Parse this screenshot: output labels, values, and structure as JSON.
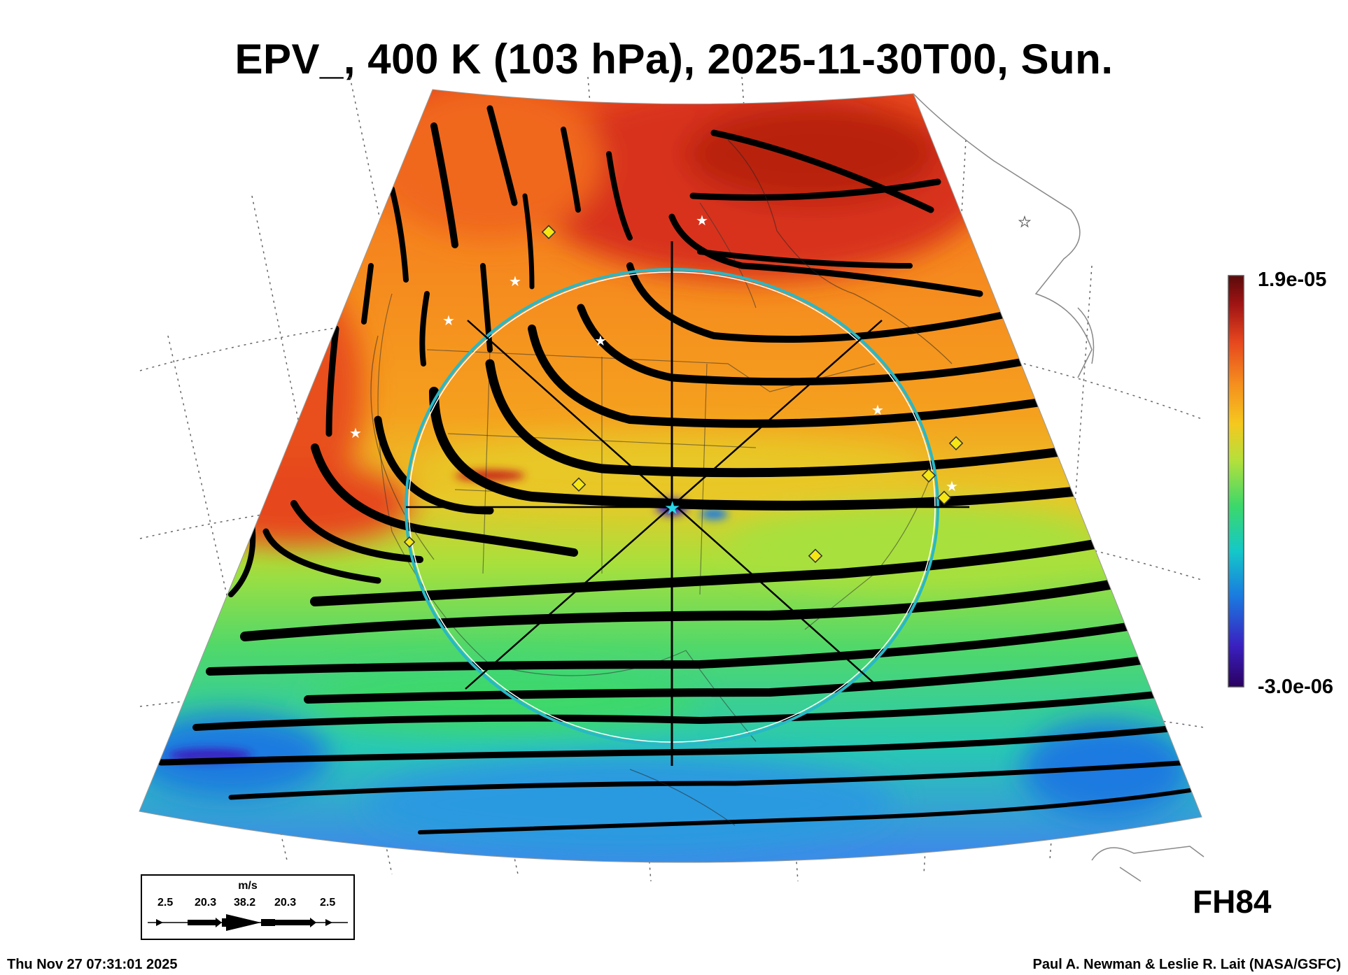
{
  "title": "EPV_, 400 K (103 hPa), 2025-11-30T00, Sun.",
  "colorbar": {
    "max_label": "1.9e-05",
    "min_label": "-3.0e-06",
    "colors": [
      "#2a0060",
      "#3a20c0",
      "#1a7ae0",
      "#14c8c8",
      "#3cd86a",
      "#b4e03c",
      "#f5c81e",
      "#f58c1e",
      "#e6461e",
      "#a01414",
      "#5a0a0a"
    ]
  },
  "wind_legend": {
    "unit": "m/s",
    "values": [
      "2.5",
      "20.3",
      "38.2",
      "20.3",
      "2.5"
    ]
  },
  "forecast_hour": "FH84",
  "footer": {
    "timestamp": "Thu Nov 27 07:31:01 2025",
    "credit": "Paul A. Newman & Leslie R. Lait (NASA/GSFC)"
  },
  "overlay_colors": {
    "ring": "#28b8c8",
    "marker_diamond": "#f5e614",
    "marker_star": "#ffffff",
    "streamline": "#000000"
  }
}
